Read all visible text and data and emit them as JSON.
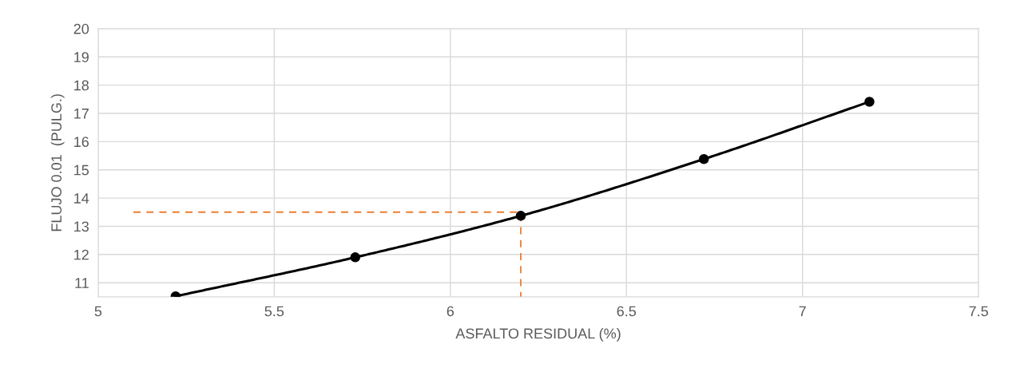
{
  "chart_data": {
    "type": "line",
    "xlabel": "ASFALTO RESIDUAL (%)",
    "ylabel": "FLUJO 0.01  (PULG.)",
    "xlim": [
      5,
      7.5
    ],
    "xticks": [
      5,
      5.5,
      6,
      6.5,
      7,
      7.5
    ],
    "ylim": [
      10.5,
      20
    ],
    "yticks": [
      11,
      12,
      13,
      14,
      15,
      16,
      17,
      18,
      19,
      20
    ],
    "grid": true,
    "legend": false,
    "marker": "circle",
    "series": [
      {
        "color": "#000000",
        "x": [
          5.22,
          5.73,
          6.2,
          6.72,
          7.19
        ],
        "values": [
          10.52,
          11.9,
          13.37,
          15.38,
          17.41
        ]
      },
      {
        "color": "#ed7d31",
        "marker": "none",
        "line_style": "dashed",
        "x": [
          5.1,
          6.2,
          6.2
        ],
        "values": [
          13.5,
          13.5,
          10.5
        ]
      }
    ]
  }
}
